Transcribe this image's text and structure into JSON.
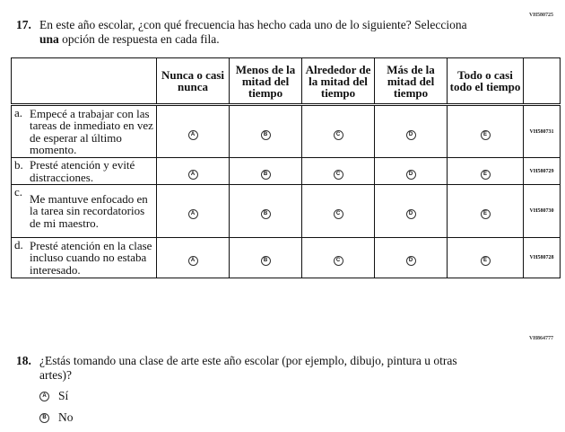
{
  "q17": {
    "id": "VH580725",
    "number": "17.",
    "text_line1": "En este año escolar, ¿con qué frecuencia has hecho cada uno de lo siguiente? Selecciona",
    "text_bold": "una",
    "text_rest": " opción de respuesta en cada fila.",
    "columns": [
      "Nunca o casi nunca",
      "Menos de la mitad del tiempo",
      "Alrededor de la mitad del tiempo",
      "Más de la mitad del tiempo",
      "Todo o casi todo el tiempo"
    ],
    "bubbles": [
      "A",
      "B",
      "C",
      "D",
      "E"
    ],
    "rows": [
      {
        "letter": "a.",
        "text": "Empecé a trabajar con las tareas de inmediato en vez de esperar al último momento.",
        "id": "VH580731"
      },
      {
        "letter": "b.",
        "text": "Presté atención y evité distracciones.",
        "id": "VH580729"
      },
      {
        "letter": "c.",
        "text": "Me mantuve enfocado en la tarea sin recordatorios de mi maestro.",
        "id": "VH580730"
      },
      {
        "letter": "d.",
        "text": "Presté atención en la clase incluso cuando no estaba interesado.",
        "id": "VH580728"
      }
    ]
  },
  "q18": {
    "id": "VH864777",
    "number": "18.",
    "text": "¿Estás tomando una clase de arte este año escolar (por ejemplo, dibujo, pintura u otras artes)?",
    "options": [
      {
        "bubble": "A",
        "label": "Sí"
      },
      {
        "bubble": "B",
        "label": "No"
      }
    ]
  }
}
